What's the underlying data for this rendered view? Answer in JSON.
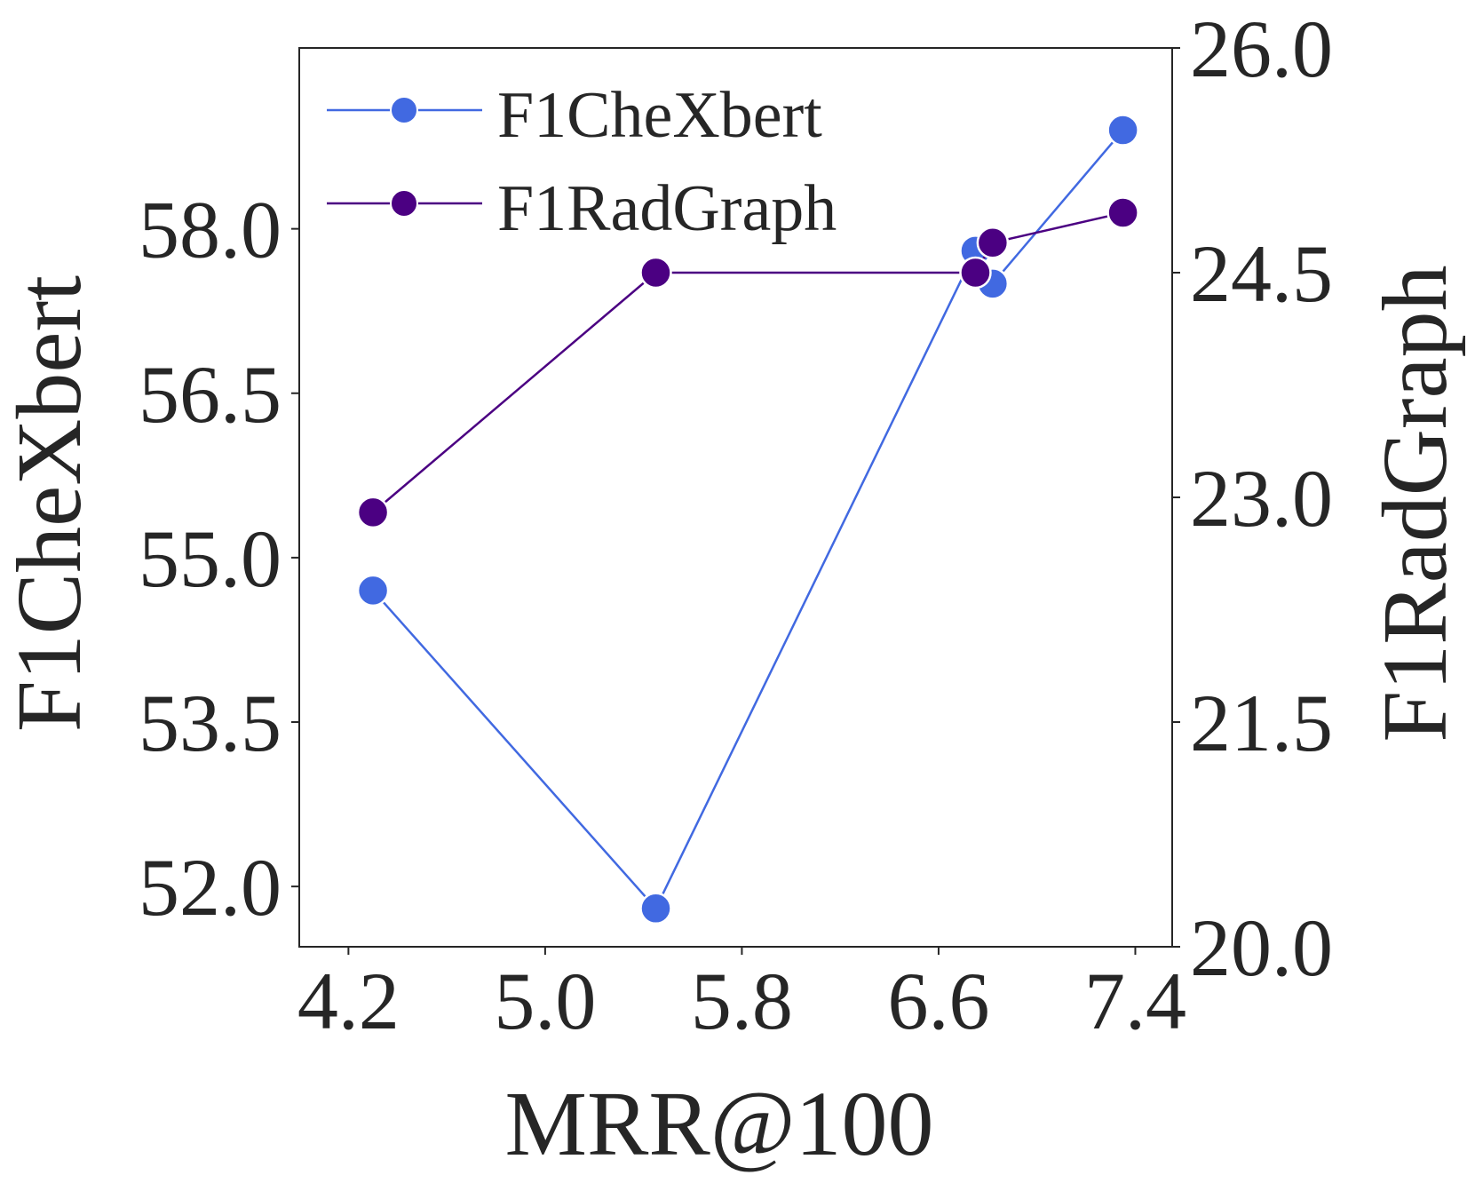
{
  "chart_data": {
    "type": "line",
    "x_axis": {
      "label": "MRR@100",
      "range": [
        4.0,
        7.55
      ],
      "ticks": [
        4.2,
        5.0,
        5.8,
        6.6,
        7.4
      ],
      "tick_labels": [
        "4.2",
        "5.0",
        "5.8",
        "6.6",
        "7.4"
      ]
    },
    "y_left": {
      "label": "F1CheXbert",
      "range": [
        51.45,
        59.65
      ],
      "ticks": [
        52.0,
        53.5,
        55.0,
        56.5,
        58.0
      ],
      "tick_labels": [
        "52.0",
        "53.5",
        "55.0",
        "56.5",
        "58.0"
      ]
    },
    "y_right": {
      "label": "F1RadGraph",
      "range": [
        20.0,
        26.0
      ],
      "ticks": [
        20.0,
        21.5,
        23.0,
        24.5,
        26.0
      ],
      "tick_labels": [
        "20.0",
        "21.5",
        "23.0",
        "24.5",
        "26.0"
      ]
    },
    "series": [
      {
        "name": "F1CheXbert",
        "axis": "left",
        "color": "#4169e1",
        "x": [
          4.3,
          5.45,
          6.75,
          6.82,
          7.35
        ],
        "y": [
          54.7,
          51.8,
          57.8,
          57.5,
          58.9
        ]
      },
      {
        "name": "F1RadGraph",
        "axis": "right",
        "color": "#4b0082",
        "x": [
          4.3,
          5.45,
          6.75,
          6.82,
          7.35
        ],
        "y": [
          22.9,
          24.5,
          24.5,
          24.7,
          24.9
        ]
      }
    ],
    "legend": {
      "position": "top-left",
      "entries": [
        "F1CheXbert",
        "F1RadGraph"
      ]
    },
    "grid": false
  }
}
